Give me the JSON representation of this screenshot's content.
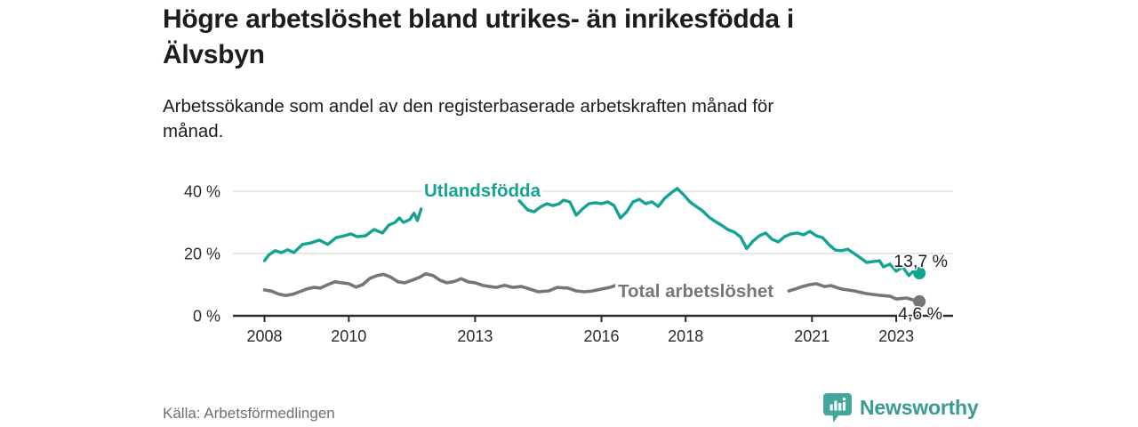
{
  "header": {
    "title": "Högre arbetslöshet bland utrikes- än inrikesfödda i\nÄlvsbyn",
    "subtitle": "Arbetssökande som andel av den registerbaserade arbetskraften månad för\nmånad."
  },
  "footer": {
    "source": "Källa: Arbetsförmedlingen",
    "brand": "Newsworthy"
  },
  "colors": {
    "teal_line": "#14a393",
    "gray_line": "#767676",
    "axis": "#2b2b2b",
    "grid": "#d9d9d9",
    "text": "#1d1d1d",
    "muted": "#6f6f6f",
    "brand_teal": "#399b92"
  },
  "chart_data": {
    "type": "line",
    "title": "Högre arbetslöshet bland utrikes- än inrikesfödda i Älvsbyn",
    "ylabel": "",
    "xlabel": "",
    "unit": "%",
    "grid": "horizontal",
    "legend_position": "inline-labels",
    "x_range": [
      2007.25,
      2024.35
    ],
    "y_range": [
      0,
      45.7
    ],
    "x_ticks": [
      {
        "label": "2008",
        "year": 2008
      },
      {
        "label": "2010",
        "year": 2010
      },
      {
        "label": "2013",
        "year": 2013
      },
      {
        "label": "2016",
        "year": 2016
      },
      {
        "label": "2018",
        "year": 2018
      },
      {
        "label": "2021",
        "year": 2021
      },
      {
        "label": "2023",
        "year": 2023
      }
    ],
    "y_ticks": [
      {
        "label": "40 %",
        "value": 40
      },
      {
        "label": "20 %",
        "value": 20
      },
      {
        "label": "0 %",
        "value": 0
      }
    ],
    "series": [
      {
        "name": "Utlandsfödda",
        "color": "#14a393",
        "end_label": "13,7 %",
        "end_value": 13.7,
        "segments": [
          [
            [
              2008.0,
              17.7
            ],
            [
              2008.1,
              19.5
            ],
            [
              2008.25,
              20.9
            ],
            [
              2008.4,
              20.3
            ],
            [
              2008.55,
              21.2
            ],
            [
              2008.7,
              20.3
            ],
            [
              2008.9,
              22.9
            ],
            [
              2009.1,
              23.4
            ],
            [
              2009.3,
              24.3
            ],
            [
              2009.5,
              22.9
            ],
            [
              2009.7,
              25.1
            ],
            [
              2009.9,
              25.7
            ],
            [
              2010.05,
              26.3
            ],
            [
              2010.2,
              25.4
            ],
            [
              2010.4,
              25.7
            ],
            [
              2010.6,
              27.7
            ],
            [
              2010.8,
              26.6
            ],
            [
              2010.95,
              29.1
            ],
            [
              2011.1,
              30.0
            ],
            [
              2011.2,
              31.4
            ],
            [
              2011.3,
              30.0
            ],
            [
              2011.45,
              30.9
            ],
            [
              2011.55,
              33.0
            ],
            [
              2011.63,
              30.6
            ],
            [
              2011.72,
              34.3
            ]
          ],
          [
            [
              2014.05,
              36.9
            ],
            [
              2014.25,
              34.0
            ],
            [
              2014.4,
              33.4
            ],
            [
              2014.55,
              34.9
            ],
            [
              2014.7,
              36.0
            ],
            [
              2014.85,
              35.4
            ],
            [
              2015.0,
              36.0
            ],
            [
              2015.1,
              37.1
            ],
            [
              2015.25,
              36.6
            ],
            [
              2015.4,
              32.3
            ],
            [
              2015.55,
              34.3
            ],
            [
              2015.7,
              36.0
            ],
            [
              2015.85,
              36.3
            ],
            [
              2016.0,
              36.0
            ],
            [
              2016.15,
              36.6
            ],
            [
              2016.3,
              35.4
            ],
            [
              2016.45,
              31.4
            ],
            [
              2016.6,
              33.4
            ],
            [
              2016.75,
              36.6
            ],
            [
              2016.9,
              37.4
            ],
            [
              2017.05,
              36.0
            ],
            [
              2017.2,
              36.6
            ],
            [
              2017.35,
              35.1
            ],
            [
              2017.5,
              37.7
            ],
            [
              2017.65,
              39.4
            ],
            [
              2017.8,
              40.9
            ],
            [
              2017.95,
              38.9
            ],
            [
              2018.1,
              36.6
            ],
            [
              2018.25,
              35.1
            ],
            [
              2018.4,
              33.7
            ],
            [
              2018.55,
              31.7
            ],
            [
              2018.7,
              30.3
            ],
            [
              2018.85,
              29.1
            ],
            [
              2019.0,
              27.7
            ],
            [
              2019.15,
              26.9
            ],
            [
              2019.3,
              25.4
            ],
            [
              2019.45,
              21.6
            ],
            [
              2019.6,
              24.0
            ],
            [
              2019.75,
              25.7
            ],
            [
              2019.9,
              26.6
            ],
            [
              2020.05,
              24.6
            ],
            [
              2020.2,
              23.7
            ],
            [
              2020.35,
              25.4
            ],
            [
              2020.5,
              26.3
            ],
            [
              2020.65,
              26.6
            ],
            [
              2020.8,
              26.0
            ],
            [
              2020.95,
              27.1
            ],
            [
              2021.1,
              25.7
            ],
            [
              2021.25,
              25.1
            ],
            [
              2021.4,
              22.9
            ],
            [
              2021.55,
              21.1
            ],
            [
              2021.7,
              20.9
            ],
            [
              2021.85,
              21.4
            ],
            [
              2022.0,
              20.0
            ],
            [
              2022.15,
              18.6
            ],
            [
              2022.3,
              17.1
            ],
            [
              2022.45,
              17.4
            ],
            [
              2022.6,
              17.7
            ],
            [
              2022.7,
              15.7
            ],
            [
              2022.85,
              16.6
            ],
            [
              2023.0,
              14.3
            ],
            [
              2023.15,
              15.7
            ],
            [
              2023.3,
              12.9
            ],
            [
              2023.45,
              14.9
            ],
            [
              2023.55,
              13.7
            ]
          ]
        ]
      },
      {
        "name": "Total arbetslöshet",
        "color": "#767676",
        "end_label": "4,6 %",
        "end_value": 4.6,
        "segments": [
          [
            [
              2008.0,
              8.3
            ],
            [
              2008.17,
              7.9
            ],
            [
              2008.33,
              7.0
            ],
            [
              2008.5,
              6.5
            ],
            [
              2008.67,
              6.9
            ],
            [
              2008.83,
              7.7
            ],
            [
              2009.0,
              8.6
            ],
            [
              2009.17,
              9.1
            ],
            [
              2009.33,
              8.9
            ],
            [
              2009.5,
              10.0
            ],
            [
              2009.67,
              10.9
            ],
            [
              2009.83,
              10.6
            ],
            [
              2010.0,
              10.3
            ],
            [
              2010.17,
              9.2
            ],
            [
              2010.33,
              10.0
            ],
            [
              2010.5,
              12.0
            ],
            [
              2010.67,
              12.9
            ],
            [
              2010.83,
              13.3
            ],
            [
              2011.0,
              12.4
            ],
            [
              2011.17,
              10.9
            ],
            [
              2011.33,
              10.6
            ],
            [
              2011.5,
              11.4
            ],
            [
              2011.67,
              12.3
            ],
            [
              2011.83,
              13.5
            ],
            [
              2012.0,
              12.9
            ],
            [
              2012.17,
              11.4
            ],
            [
              2012.33,
              10.6
            ],
            [
              2012.5,
              11.0
            ],
            [
              2012.67,
              11.9
            ],
            [
              2012.83,
              10.9
            ],
            [
              2013.0,
              10.6
            ],
            [
              2013.2,
              9.7
            ],
            [
              2013.5,
              9.1
            ],
            [
              2013.7,
              9.8
            ],
            [
              2013.9,
              9.1
            ],
            [
              2014.1,
              9.4
            ],
            [
              2014.3,
              8.6
            ],
            [
              2014.5,
              7.7
            ],
            [
              2014.75,
              8.0
            ],
            [
              2014.95,
              9.1
            ],
            [
              2015.2,
              8.9
            ],
            [
              2015.4,
              8.0
            ],
            [
              2015.6,
              7.7
            ],
            [
              2015.8,
              8.0
            ],
            [
              2016.0,
              8.6
            ],
            [
              2016.2,
              9.1
            ],
            [
              2016.35,
              9.8
            ]
          ],
          [
            [
              2020.45,
              8.0
            ],
            [
              2020.6,
              8.6
            ],
            [
              2020.75,
              9.3
            ],
            [
              2020.95,
              10.0
            ],
            [
              2021.1,
              10.3
            ],
            [
              2021.3,
              9.4
            ],
            [
              2021.45,
              9.7
            ],
            [
              2021.7,
              8.6
            ],
            [
              2022.0,
              8.0
            ],
            [
              2022.3,
              7.1
            ],
            [
              2022.6,
              6.6
            ],
            [
              2022.85,
              6.3
            ],
            [
              2023.0,
              5.4
            ],
            [
              2023.25,
              5.7
            ],
            [
              2023.4,
              5.1
            ],
            [
              2023.55,
              4.6
            ]
          ]
        ]
      }
    ]
  }
}
